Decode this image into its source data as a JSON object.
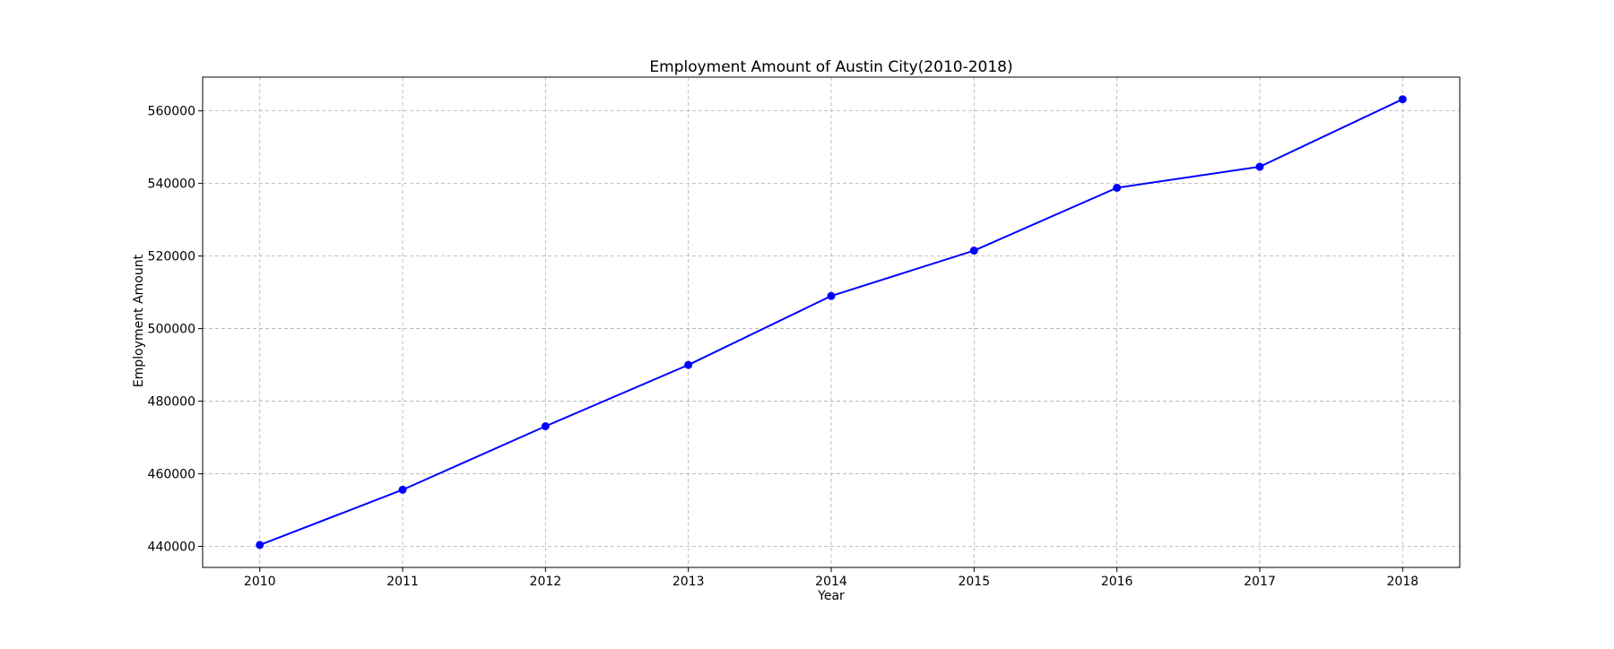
{
  "chart_data": {
    "type": "line",
    "title": "Employment Amount of Austin City(2010-2018)",
    "xlabel": "Year",
    "ylabel": "Employment Amount",
    "x": [
      2010,
      2011,
      2012,
      2013,
      2014,
      2015,
      2016,
      2017,
      2018
    ],
    "x_tick_labels": [
      "2010",
      "2011",
      "2012",
      "2013",
      "2014",
      "2015",
      "2016",
      "2017",
      "2018"
    ],
    "y_ticks": [
      440000,
      460000,
      480000,
      500000,
      520000,
      540000,
      560000
    ],
    "y_tick_labels": [
      "440000",
      "460000",
      "480000",
      "500000",
      "520000",
      "540000",
      "560000"
    ],
    "series": [
      {
        "values": [
          440400,
          455600,
          473100,
          490000,
          509000,
          521500,
          538800,
          544600,
          563200
        ]
      }
    ],
    "xlim": [
      2009.6,
      2018.4
    ],
    "ylim": [
      434200,
      569300
    ],
    "grid": true,
    "legend": false,
    "colors": {
      "line": "#0000ff",
      "marker": "#0000ff",
      "grid": "#b0b0b0",
      "axes": "#000000"
    }
  }
}
